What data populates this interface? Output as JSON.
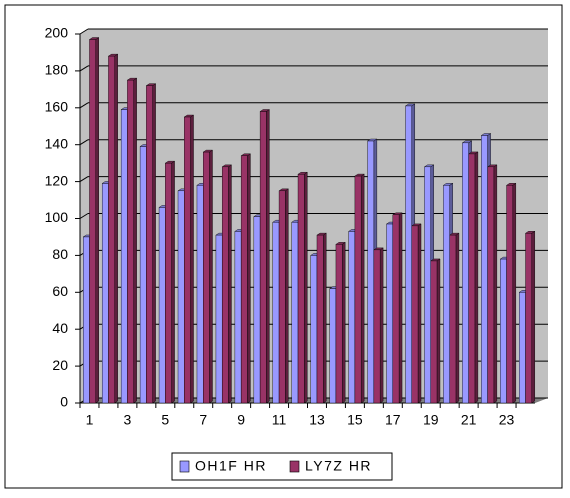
{
  "chart_data": {
    "type": "bar",
    "categories": [
      "1",
      null,
      "3",
      null,
      "5",
      null,
      "7",
      null,
      "9",
      null,
      "11",
      null,
      "13",
      null,
      "15",
      null,
      "17",
      null,
      "19",
      null,
      "21",
      null,
      "23",
      null
    ],
    "series": [
      {
        "name": "OH1F HR",
        "color": "#9999ff",
        "values": [
          90,
          119,
          159,
          139,
          106,
          115,
          118,
          91,
          93,
          101,
          98,
          98,
          80,
          62,
          93,
          142,
          97,
          161,
          128,
          118,
          141,
          145,
          78,
          60
        ]
      },
      {
        "name": "LY7Z HR",
        "color": "#993366",
        "values": [
          197,
          188,
          175,
          172,
          130,
          155,
          136,
          128,
          134,
          158,
          115,
          124,
          91,
          86,
          123,
          83,
          102,
          96,
          77,
          91,
          135,
          128,
          118,
          92
        ]
      }
    ],
    "ylim": [
      0,
      200
    ],
    "yticks": [
      0,
      20,
      40,
      60,
      80,
      100,
      120,
      140,
      160,
      180,
      200
    ],
    "grid": true,
    "legend": "bottom"
  }
}
